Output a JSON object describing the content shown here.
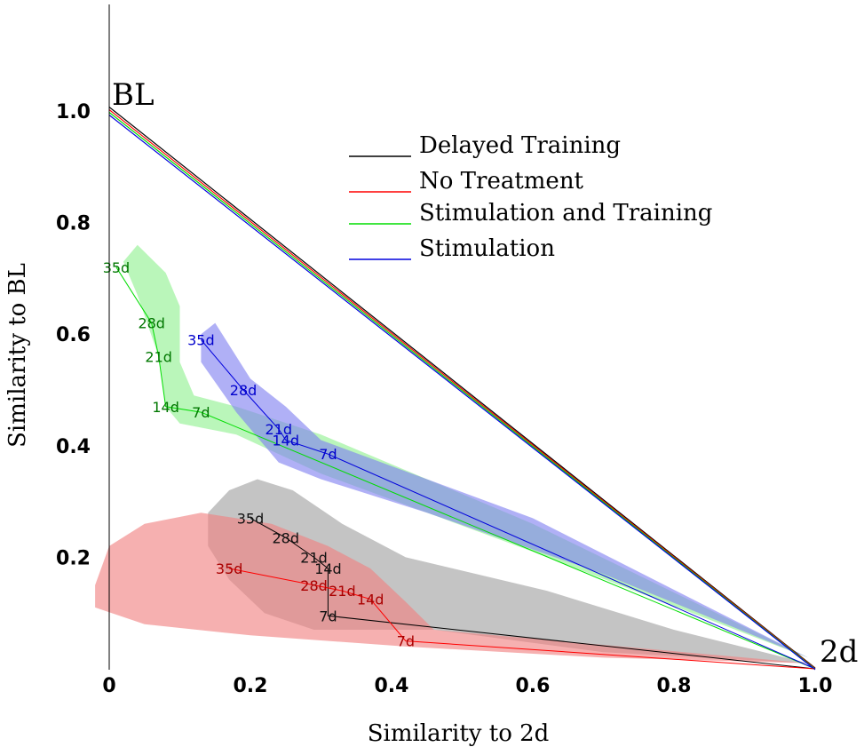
{
  "chart_data": {
    "type": "scatter",
    "xlabel": "Similarity to 2d",
    "ylabel": "Similarity to BL",
    "xlim": [
      0,
      1.0
    ],
    "ylim": [
      0,
      1.15
    ],
    "x_ticks": [
      "0",
      "0.2",
      "0.4",
      "0.6",
      "0.8",
      "1.0"
    ],
    "y_ticks": [
      "0.2",
      "0.4",
      "0.6",
      "0.8",
      "1.0"
    ],
    "corner_labels": {
      "top_left": "BL",
      "bottom_right": "2d"
    },
    "legend_position": "top-right",
    "series": [
      {
        "name": "Delayed Training",
        "color": "#000000",
        "fill": "#a0a0a0",
        "points": [
          {
            "label": "35d",
            "x": 0.2,
            "y": 0.27
          },
          {
            "label": "28d",
            "x": 0.25,
            "y": 0.235
          },
          {
            "label": "21d",
            "x": 0.29,
            "y": 0.2
          },
          {
            "label": "14d",
            "x": 0.31,
            "y": 0.18
          },
          {
            "label": "7d",
            "x": 0.31,
            "y": 0.095
          }
        ],
        "hull": [
          [
            0.14,
            0.28
          ],
          [
            0.17,
            0.32
          ],
          [
            0.21,
            0.34
          ],
          [
            0.26,
            0.32
          ],
          [
            0.33,
            0.26
          ],
          [
            0.42,
            0.2
          ],
          [
            0.62,
            0.14
          ],
          [
            0.8,
            0.07
          ],
          [
            0.99,
            0.01
          ],
          [
            0.7,
            0.03
          ],
          [
            0.46,
            0.07
          ],
          [
            0.38,
            0.07
          ],
          [
            0.29,
            0.07
          ],
          [
            0.22,
            0.1
          ],
          [
            0.17,
            0.16
          ],
          [
            0.14,
            0.22
          ]
        ]
      },
      {
        "name": "No Treatment",
        "color": "#ff0000",
        "fill": "#f08080",
        "points": [
          {
            "label": "35d",
            "x": 0.17,
            "y": 0.18
          },
          {
            "label": "28d",
            "x": 0.29,
            "y": 0.15
          },
          {
            "label": "21d",
            "x": 0.33,
            "y": 0.14
          },
          {
            "label": "14d",
            "x": 0.37,
            "y": 0.125
          },
          {
            "label": "7d",
            "x": 0.42,
            "y": 0.05
          }
        ],
        "hull": [
          [
            -0.02,
            0.15
          ],
          [
            0.0,
            0.22
          ],
          [
            0.05,
            0.26
          ],
          [
            0.13,
            0.28
          ],
          [
            0.23,
            0.26
          ],
          [
            0.31,
            0.22
          ],
          [
            0.37,
            0.18
          ],
          [
            0.42,
            0.12
          ],
          [
            0.46,
            0.07
          ],
          [
            0.99,
            0.01
          ],
          [
            0.7,
            0.02
          ],
          [
            0.42,
            0.04
          ],
          [
            0.2,
            0.06
          ],
          [
            0.05,
            0.08
          ],
          [
            -0.02,
            0.11
          ]
        ]
      },
      {
        "name": "Stimulation and Training",
        "color": "#00dd00",
        "fill": "#8ff08f",
        "points": [
          {
            "label": "35d",
            "x": 0.01,
            "y": 0.72
          },
          {
            "label": "28d",
            "x": 0.06,
            "y": 0.62
          },
          {
            "label": "21d",
            "x": 0.07,
            "y": 0.56
          },
          {
            "label": "14d",
            "x": 0.08,
            "y": 0.47
          },
          {
            "label": "7d",
            "x": 0.13,
            "y": 0.46
          }
        ],
        "hull": [
          [
            0.02,
            0.73
          ],
          [
            0.04,
            0.76
          ],
          [
            0.08,
            0.71
          ],
          [
            0.1,
            0.65
          ],
          [
            0.1,
            0.55
          ],
          [
            0.12,
            0.49
          ],
          [
            0.18,
            0.47
          ],
          [
            0.3,
            0.42
          ],
          [
            0.6,
            0.26
          ],
          [
            0.99,
            0.02
          ],
          [
            0.6,
            0.21
          ],
          [
            0.3,
            0.35
          ],
          [
            0.18,
            0.42
          ],
          [
            0.1,
            0.44
          ],
          [
            0.08,
            0.47
          ],
          [
            0.07,
            0.56
          ],
          [
            0.04,
            0.67
          ]
        ]
      },
      {
        "name": "Stimulation",
        "color": "#0000dd",
        "fill": "#8080f0",
        "points": [
          {
            "label": "35d",
            "x": 0.13,
            "y": 0.59
          },
          {
            "label": "28d",
            "x": 0.19,
            "y": 0.5
          },
          {
            "label": "21d",
            "x": 0.24,
            "y": 0.43
          },
          {
            "label": "14d",
            "x": 0.25,
            "y": 0.41
          },
          {
            "label": "7d",
            "x": 0.31,
            "y": 0.385
          }
        ],
        "hull": [
          [
            0.13,
            0.6
          ],
          [
            0.15,
            0.62
          ],
          [
            0.2,
            0.52
          ],
          [
            0.25,
            0.47
          ],
          [
            0.3,
            0.41
          ],
          [
            0.6,
            0.27
          ],
          [
            0.99,
            0.02
          ],
          [
            0.7,
            0.17
          ],
          [
            0.45,
            0.28
          ],
          [
            0.3,
            0.34
          ],
          [
            0.24,
            0.37
          ],
          [
            0.18,
            0.46
          ],
          [
            0.13,
            0.55
          ]
        ]
      }
    ],
    "reference_lines": [
      {
        "series": "Delayed Training",
        "from": [
          0,
          1.0
        ],
        "to": [
          1.0,
          0
        ]
      },
      {
        "series": "No Treatment",
        "from": [
          0,
          1.0
        ],
        "to": [
          1.0,
          0
        ]
      },
      {
        "series": "Stimulation and Training",
        "from": [
          0,
          1.0
        ],
        "to": [
          1.0,
          0
        ]
      },
      {
        "series": "Stimulation",
        "from": [
          0,
          1.0
        ],
        "to": [
          1.0,
          0
        ]
      }
    ]
  }
}
